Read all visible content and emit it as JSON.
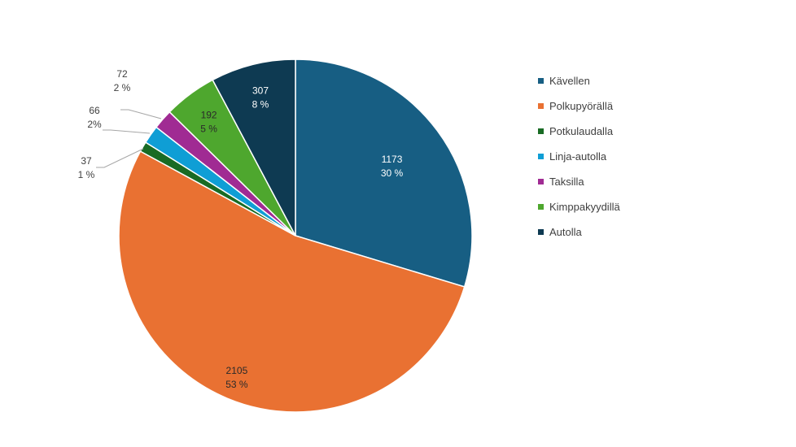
{
  "chart_data": {
    "type": "pie",
    "categories": [
      "Kävellen",
      "Polkupyörällä",
      "Potkulaudalla",
      "Linja-autolla",
      "Taksilla",
      "Kimppakyydillä",
      "Autolla"
    ],
    "values": [
      1173,
      2105,
      37,
      66,
      72,
      192,
      307
    ],
    "percent_labels": [
      "30 %",
      "53 %",
      "1 %",
      "2%",
      "2 %",
      "5 %",
      "8 %"
    ],
    "colors": [
      "#175E83",
      "#E97132",
      "#196B24",
      "#0F9ED5",
      "#A02B93",
      "#4EA72E",
      "#0E3A52"
    ],
    "legend_position": "right",
    "start_angle_deg": 0,
    "direction": "clockwise"
  }
}
